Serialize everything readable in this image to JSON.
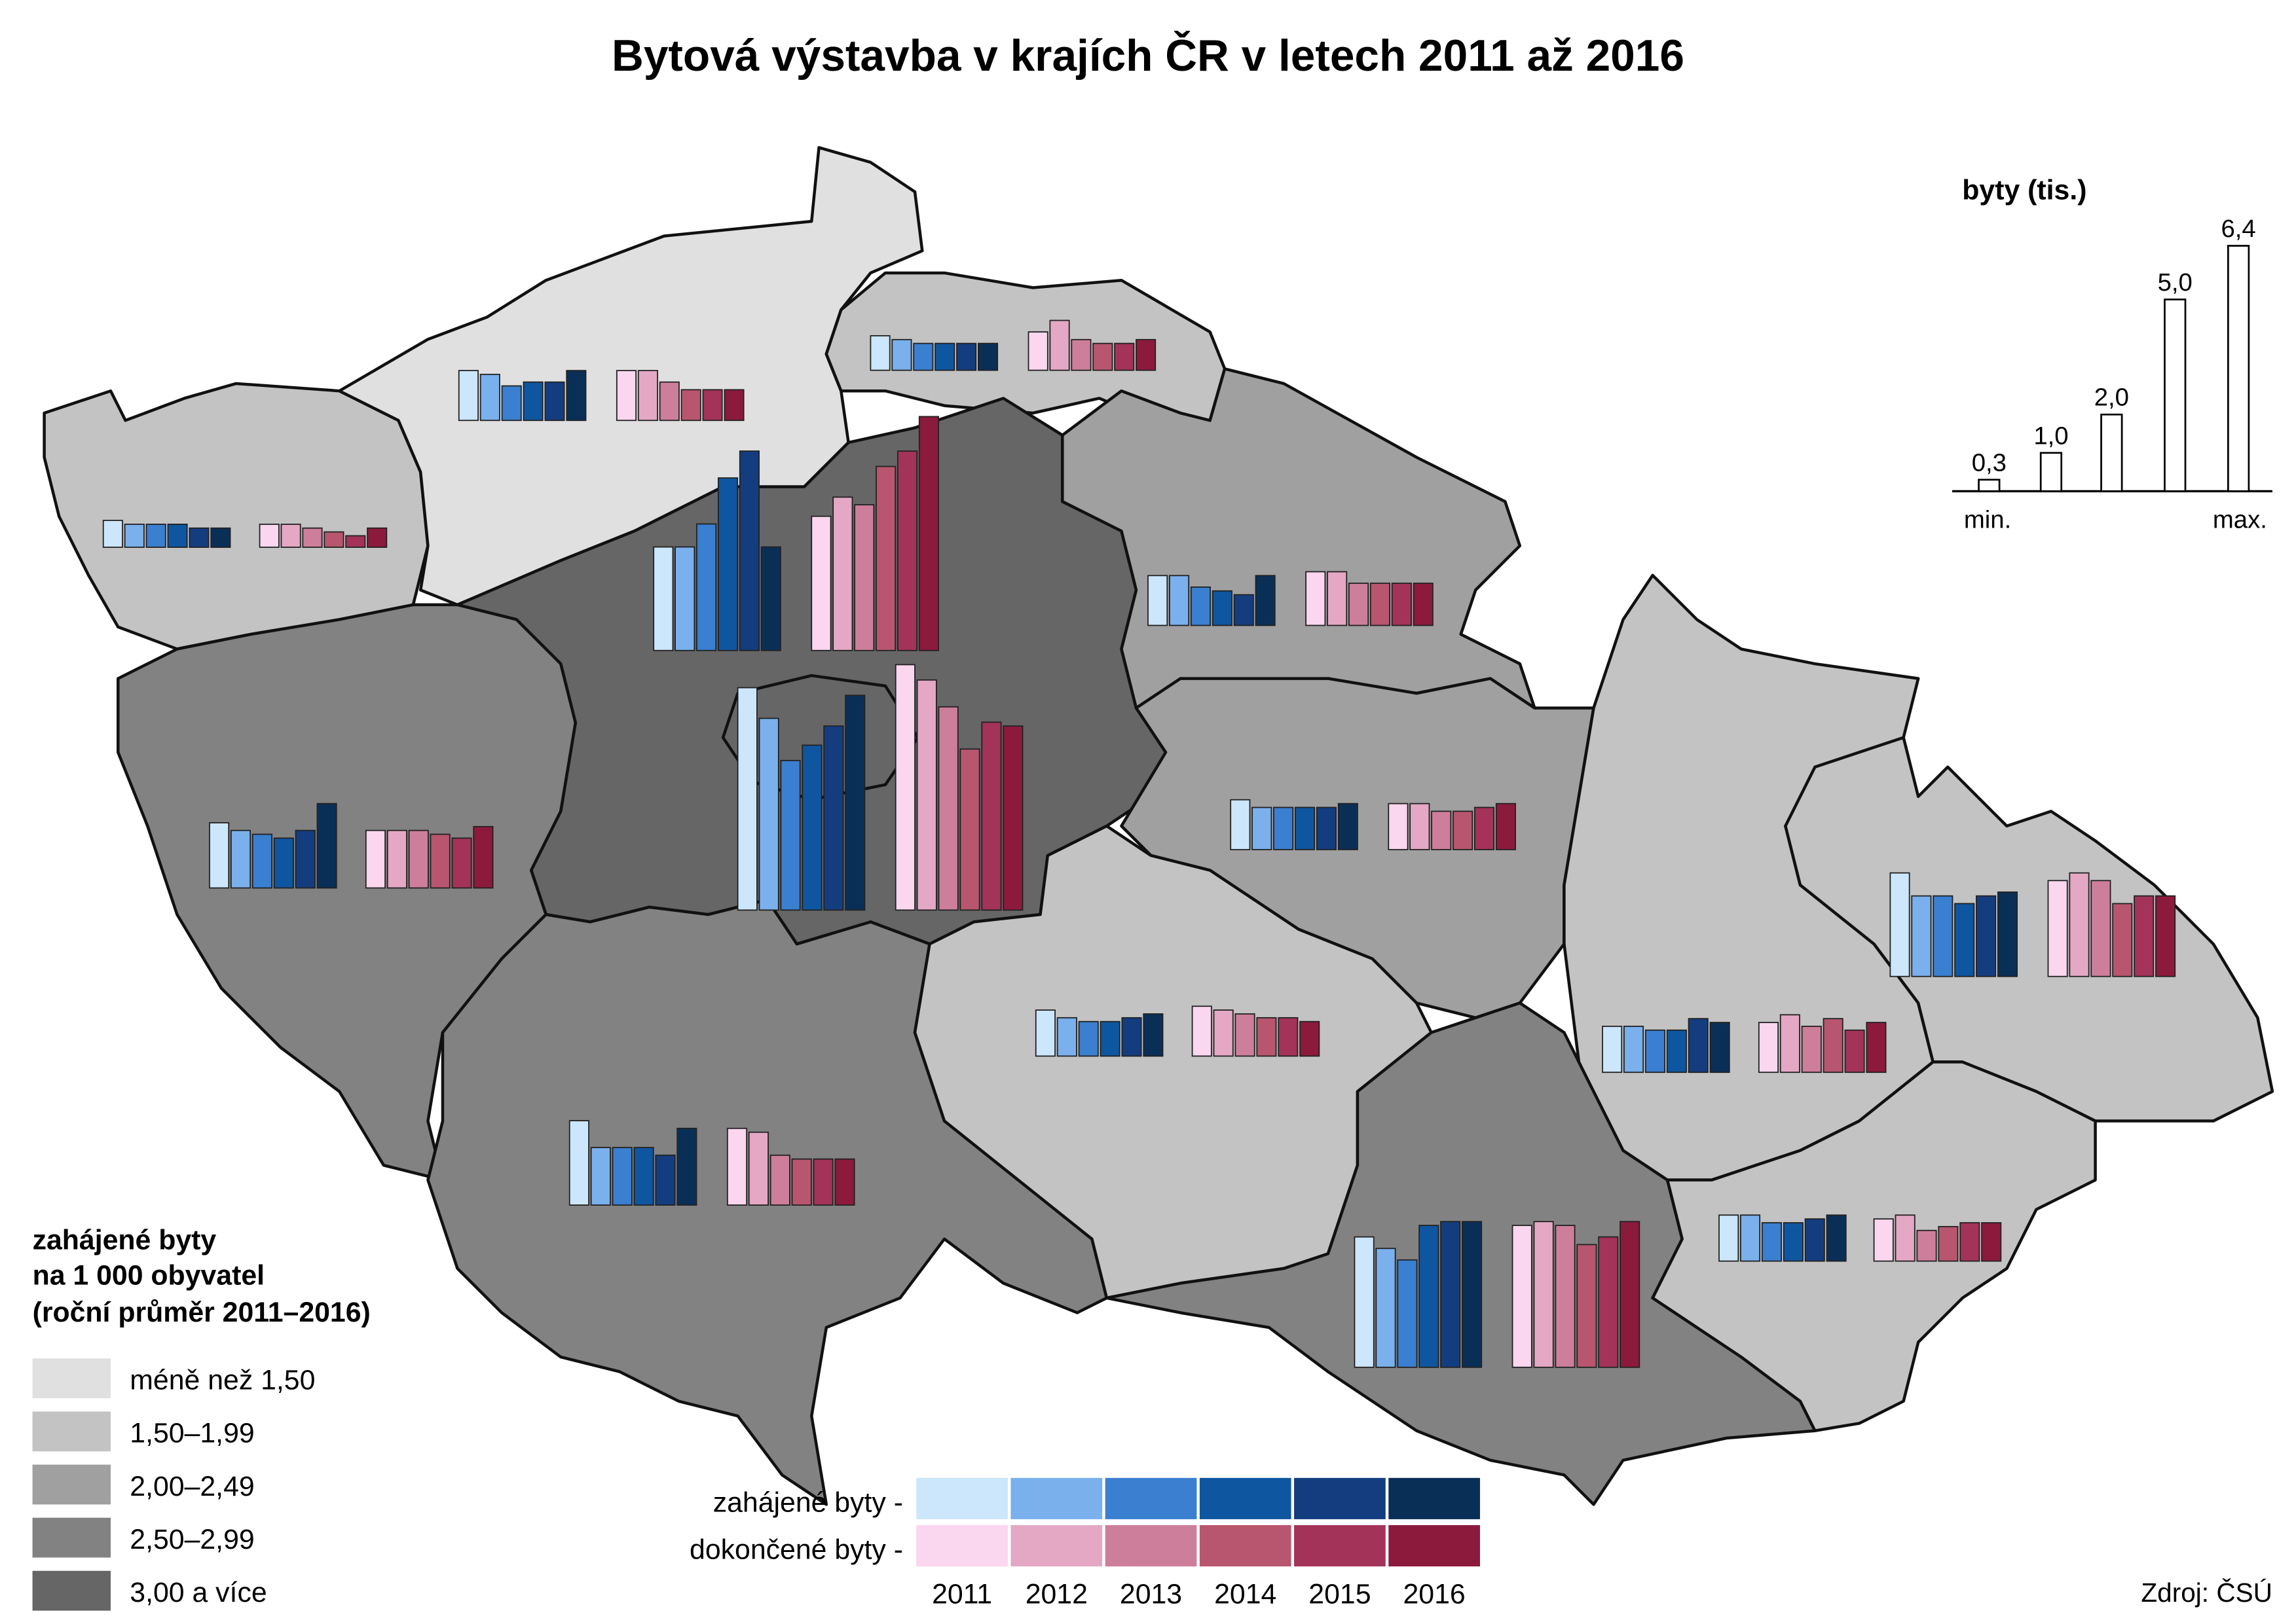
{
  "title": "Bytová výstavba v krajích ČR v letech 2011 až 2016",
  "bar_colors": {
    "started": [
      "#cce6fb",
      "#7ab0ec",
      "#3a7fd0",
      "#0f56a0",
      "#143d80",
      "#0a2f57"
    ],
    "completed": [
      "#fad6ef",
      "#e4a8c4",
      "#cd7e9a",
      "#b8566f",
      "#a33358",
      "#8c1a3c"
    ]
  },
  "regions": [
    {
      "class": 1,
      "started": [
        0.7,
        0.6,
        0.6,
        0.6,
        0.5,
        0.5
      ],
      "completed": [
        0.6,
        0.6,
        0.5,
        0.4,
        0.3,
        0.5
      ]
    },
    {
      "class": 0,
      "started": [
        1.3,
        1.2,
        0.9,
        1.0,
        1.0,
        1.3
      ],
      "completed": [
        1.3,
        1.3,
        1.0,
        0.8,
        0.8,
        0.8
      ]
    },
    {
      "class": 1,
      "started": [
        0.9,
        0.8,
        0.7,
        0.7,
        0.7,
        0.7
      ],
      "completed": [
        1.0,
        1.3,
        0.8,
        0.7,
        0.7,
        0.8
      ]
    },
    {
      "class": 4,
      "started": [
        5.8,
        5.0,
        3.9,
        4.3,
        4.8,
        5.6
      ],
      "completed": [
        6.4,
        6.0,
        5.3,
        4.2,
        4.9,
        4.8
      ]
    },
    {
      "class": 4,
      "started": [
        2.7,
        2.7,
        3.3,
        4.5,
        5.2,
        2.7
      ],
      "completed": [
        3.5,
        4.0,
        3.8,
        4.8,
        5.2,
        6.1
      ]
    },
    {
      "class": 2,
      "started": [
        1.3,
        1.3,
        1.0,
        0.9,
        0.8,
        1.3
      ],
      "completed": [
        1.4,
        1.4,
        1.1,
        1.1,
        1.1,
        1.1
      ]
    },
    {
      "class": 2,
      "started": [
        1.3,
        1.1,
        1.1,
        1.1,
        1.1,
        1.2
      ],
      "completed": [
        1.2,
        1.2,
        1.0,
        1.0,
        1.1,
        1.2
      ]
    },
    {
      "class": 3,
      "started": [
        1.7,
        1.5,
        1.4,
        1.3,
        1.5,
        2.2
      ],
      "completed": [
        1.5,
        1.5,
        1.5,
        1.4,
        1.3,
        1.6
      ]
    },
    {
      "class": 3,
      "started": [
        2.2,
        1.5,
        1.5,
        1.5,
        1.3,
        2.0
      ],
      "completed": [
        2.0,
        1.9,
        1.3,
        1.2,
        1.2,
        1.2
      ]
    },
    {
      "class": 1,
      "started": [
        1.2,
        1.0,
        0.9,
        0.9,
        1.0,
        1.1
      ],
      "completed": [
        1.3,
        1.2,
        1.1,
        1.0,
        1.0,
        0.9
      ]
    },
    {
      "class": 3,
      "started": [
        3.4,
        3.1,
        2.8,
        3.7,
        3.8,
        3.8
      ],
      "completed": [
        3.7,
        3.8,
        3.7,
        3.2,
        3.4,
        3.8
      ]
    },
    {
      "class": 1,
      "started": [
        1.2,
        1.2,
        1.1,
        1.1,
        1.4,
        1.3
      ],
      "completed": [
        1.3,
        1.5,
        1.2,
        1.4,
        1.1,
        1.3
      ]
    },
    {
      "class": 1,
      "started": [
        2.7,
        2.1,
        2.1,
        1.9,
        2.1,
        2.2
      ],
      "completed": [
        2.5,
        2.7,
        2.5,
        1.9,
        2.1,
        2.1
      ]
    },
    {
      "class": 1,
      "started": [
        1.2,
        1.2,
        1.0,
        1.0,
        1.1,
        1.2
      ],
      "completed": [
        1.1,
        1.2,
        0.8,
        0.9,
        1.0,
        1.0
      ]
    }
  ],
  "scale": {
    "title": "byty (tis.)",
    "bars": [
      {
        "value": 0.3,
        "label": "0,3"
      },
      {
        "value": 1.0,
        "label": "1,0"
      },
      {
        "value": 2.0,
        "label": "2,0"
      },
      {
        "value": 5.0,
        "label": "5,0"
      },
      {
        "value": 6.4,
        "label": "6,4"
      }
    ],
    "min": "min.",
    "max": "max."
  },
  "legend": {
    "title": [
      "zahájené byty",
      "na 1 000 obyvatel",
      "(roční průměr 2011–2016)"
    ],
    "classes": [
      {
        "label": "méně než 1,50",
        "color": "#e0e0e0"
      },
      {
        "label": "1,50–1,99",
        "color": "#c3c3c3"
      },
      {
        "label": "2,00–2,49",
        "color": "#a0a0a0"
      },
      {
        "label": "2,50–2,99",
        "color": "#828282"
      },
      {
        "label": "3,00 a více",
        "color": "#666666"
      }
    ]
  },
  "series_legend": {
    "started": "zahájené byty -",
    "completed": "dokončené byty -",
    "years": [
      2011,
      2012,
      2013,
      2014,
      2015,
      2016
    ]
  },
  "source": "Zdroj: ČSÚ"
}
